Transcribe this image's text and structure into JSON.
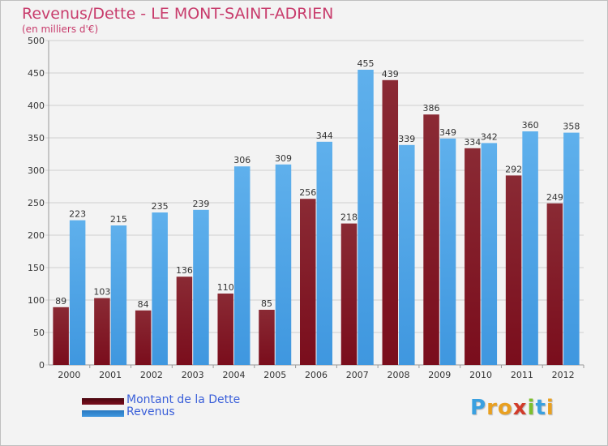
{
  "header": {
    "title": "Revenus/Dette - LE MONT-SAINT-ADRIEN",
    "subtitle": "(en milliers d'€)"
  },
  "colors": {
    "dette": "#7a0d1c",
    "revenus": "#3f97df",
    "title": "#c83c6c",
    "legend_text": "#3a5fd9",
    "grid": "#cfcfcf"
  },
  "chart_data": {
    "type": "bar",
    "title": "Revenus/Dette - LE MONT-SAINT-ADRIEN",
    "ylabel": "(en milliers d'€)",
    "xlabel": "",
    "ylim": [
      0,
      500
    ],
    "yticks": [
      0,
      50,
      100,
      150,
      200,
      250,
      300,
      350,
      400,
      450,
      500
    ],
    "categories": [
      "2000",
      "2001",
      "2002",
      "2003",
      "2004",
      "2005",
      "2006",
      "2007",
      "2008",
      "2009",
      "2010",
      "2011",
      "2012"
    ],
    "series": [
      {
        "name": "Montant de la Dette",
        "values": [
          89,
          103,
          84,
          136,
          110,
          85,
          256,
          218,
          439,
          386,
          334,
          292,
          249
        ]
      },
      {
        "name": "Revenus",
        "values": [
          223,
          215,
          235,
          239,
          306,
          309,
          344,
          455,
          339,
          349,
          342,
          360,
          358
        ]
      }
    ],
    "grid": true,
    "legend_position": "bottom-left"
  },
  "legend": {
    "items": [
      {
        "label": "Montant de la Dette",
        "color": "#7a0d1c"
      },
      {
        "label": "Revenus",
        "color": "#3f97df"
      }
    ]
  },
  "logo": {
    "text": "Proxiti",
    "letters": [
      {
        "ch": "P",
        "color": "#3aa0e0"
      },
      {
        "ch": "r",
        "color": "#e9a020"
      },
      {
        "ch": "o",
        "color": "#e9a020"
      },
      {
        "ch": "x",
        "color": "#d13b2a"
      },
      {
        "ch": "i",
        "color": "#7cbf2e"
      },
      {
        "ch": "t",
        "color": "#3aa0e0"
      },
      {
        "ch": "i",
        "color": "#e9a020"
      }
    ]
  }
}
